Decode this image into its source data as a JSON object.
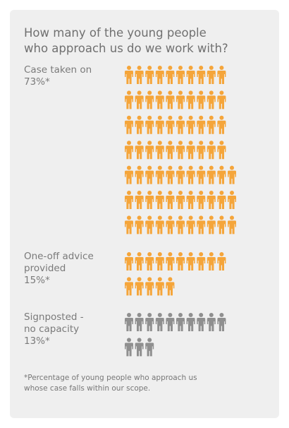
{
  "title_line1": "How many of the young people",
  "title_line2": "who approach us do we work with?",
  "footnote_line1": "*Percentage of young people who approach us",
  "footnote_line2": "whose case falls within our scope.",
  "colors": {
    "orange": "#f5a53a",
    "gray": "#8f8f8f",
    "background": "#efefef"
  },
  "chart_data": {
    "type": "pictogram",
    "categories": [
      "Case taken on",
      "One-off advice provided",
      "Signposted - no capacity"
    ],
    "values": [
      73,
      15,
      13
    ],
    "unit": "%",
    "series": [
      {
        "label_lines": [
          "Case taken on",
          "73%*"
        ],
        "value": 73,
        "color": "#f5a53a"
      },
      {
        "label_lines": [
          "One-off advice",
          "provided",
          "15%*"
        ],
        "value": 15,
        "color": "#f5a53a"
      },
      {
        "label_lines": [
          "Signposted -",
          "no capacity",
          "13%*"
        ],
        "value": 13,
        "color": "#8f8f8f"
      }
    ]
  }
}
